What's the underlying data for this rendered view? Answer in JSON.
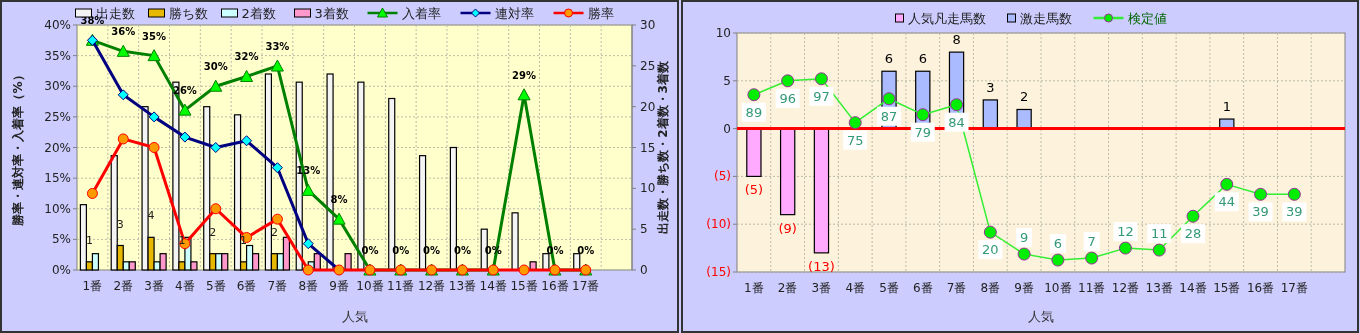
{
  "chart_data": [
    {
      "type": "bar",
      "xlabel": "人気",
      "ylabel": "勝率・連対率・入着率（%）",
      "y2label": "出走数・勝ち数・2着数・3着数",
      "legend": "top",
      "grid": true,
      "categories": [
        "1番",
        "2番",
        "3番",
        "4番",
        "5番",
        "6番",
        "7番",
        "8番",
        "9番",
        "10番",
        "11番",
        "12番",
        "13番",
        "14番",
        "15番",
        "16番",
        "17番",
        null
      ],
      "ylim": [
        0,
        40
      ],
      "yticks": [
        {
          "value": 0,
          "label": "0%"
        },
        {
          "value": 5,
          "label": "5%"
        },
        {
          "value": 10,
          "label": "10%"
        },
        {
          "value": 15,
          "label": "15%"
        },
        {
          "value": 20,
          "label": "20%"
        },
        {
          "value": 25,
          "label": "25%"
        },
        {
          "value": 30,
          "label": "30%"
        },
        {
          "value": 35,
          "label": "35%"
        },
        {
          "value": 40,
          "label": "40%"
        }
      ],
      "y2lim": [
        0,
        30
      ],
      "y2ticks": [
        0,
        5,
        10,
        15,
        20,
        25,
        30
      ],
      "series": [
        {
          "name": "出走数",
          "axis": "y2",
          "color": "#f4f4f4",
          "values": [
            8,
            14,
            20,
            23,
            20,
            19,
            24,
            23,
            24,
            23,
            21,
            14,
            15,
            5,
            7,
            2,
            2,
            null
          ]
        },
        {
          "name": "勝ち数",
          "axis": "y2",
          "color": "#e6b800",
          "values": [
            1,
            3,
            4,
            1,
            2,
            1,
            2,
            0,
            0,
            0,
            0,
            0,
            0,
            0,
            0,
            0,
            0,
            null
          ],
          "value_labels": [
            "1",
            "3",
            "4",
            "1",
            "2",
            "1",
            "2",
            null,
            null,
            null,
            null,
            null,
            null,
            null,
            null,
            null,
            null,
            null
          ]
        },
        {
          "name": "2着数",
          "axis": "y2",
          "color": "#ccffff",
          "values": [
            2,
            1,
            1,
            4,
            2,
            3,
            2,
            1,
            0,
            0,
            0,
            0,
            0,
            0,
            0,
            0,
            0,
            null
          ]
        },
        {
          "name": "3着数",
          "axis": "y2",
          "color": "#ff99cc",
          "values": [
            0,
            1,
            2,
            1,
            2,
            2,
            4,
            2,
            2,
            0,
            0,
            0,
            0,
            0,
            1,
            0,
            0,
            null
          ]
        },
        {
          "name": "入着率",
          "type": "line",
          "color": "#008000",
          "marker": "triangle",
          "values": [
            37.5,
            35.7,
            35,
            26.1,
            30,
            31.6,
            33.3,
            13,
            8.3,
            0,
            0,
            0,
            0,
            0,
            28.6,
            0,
            0,
            null
          ],
          "value_labels": [
            "38%",
            "36%",
            "35%",
            "26%",
            "30%",
            "32%",
            "33%",
            "13%",
            "8%",
            "0%",
            "0%",
            "0%",
            "0%",
            "0%",
            "29%",
            "0%",
            "0%",
            null
          ]
        },
        {
          "name": "連対率",
          "type": "line",
          "color": "#000080",
          "marker": "diamond",
          "values": [
            37.5,
            28.6,
            25,
            21.7,
            20,
            21.1,
            16.7,
            4.3,
            0,
            null,
            null,
            null,
            null,
            null,
            null,
            null,
            null,
            null
          ]
        },
        {
          "name": "勝率",
          "type": "line",
          "color": "#ff0000",
          "marker": "circle",
          "values": [
            12.5,
            21.4,
            20,
            4.3,
            10,
            5.3,
            8.3,
            0,
            0,
            0,
            0,
            0,
            0,
            0,
            0,
            0,
            0,
            null
          ]
        }
      ]
    },
    {
      "type": "bar",
      "xlabel": "人気",
      "legend": "top",
      "grid": true,
      "categories": [
        "1番",
        "2番",
        "3番",
        "4番",
        "5番",
        "6番",
        "7番",
        "8番",
        "9番",
        "10番",
        "11番",
        "12番",
        "13番",
        "14番",
        "15番",
        "16番",
        "17番",
        null
      ],
      "ylim": [
        -15,
        10
      ],
      "yticks": [
        {
          "value": -15,
          "label": "(15)"
        },
        {
          "value": -10,
          "label": "(10)"
        },
        {
          "value": -5,
          "label": "(5)"
        },
        0,
        5,
        10
      ],
      "y2lim": [
        0,
        120
      ],
      "ref_lines": [
        {
          "axis": "y",
          "value": 0,
          "color": "#ff0000"
        }
      ],
      "series": [
        {
          "name": "人気凡走馬数",
          "color": "#ffaaff",
          "values": [
            -5,
            -9,
            -13,
            null,
            null,
            null,
            null,
            null,
            null,
            null,
            null,
            null,
            null,
            null,
            null,
            null,
            null,
            null
          ],
          "value_labels": [
            "(5)",
            "(9)",
            "(13)",
            null,
            null,
            null,
            null,
            null,
            null,
            null,
            null,
            null,
            null,
            null,
            null,
            null,
            null,
            null
          ]
        },
        {
          "name": "激走馬数",
          "color": "#aabbff",
          "values": [
            null,
            null,
            null,
            null,
            6,
            6,
            8,
            3,
            2,
            null,
            null,
            null,
            null,
            null,
            1,
            null,
            null,
            null
          ],
          "value_labels": [
            null,
            null,
            null,
            null,
            "6",
            "6",
            "8",
            "3",
            "2",
            null,
            null,
            null,
            null,
            null,
            "1",
            null,
            null,
            null
          ]
        },
        {
          "name": "検定値",
          "type": "line",
          "axis": "y2",
          "color": "#33ee33",
          "marker": "circle",
          "values": [
            89,
            96,
            97,
            75,
            87,
            79,
            84,
            20,
            9,
            6,
            7,
            12,
            11,
            28,
            44,
            39,
            39,
            null
          ],
          "value_labels": [
            "89",
            "96",
            "97",
            "75",
            "87",
            "79",
            "84",
            "20",
            "9",
            "6",
            "7",
            "12",
            "11",
            "28",
            "44",
            "39",
            "39",
            null
          ]
        }
      ]
    }
  ]
}
